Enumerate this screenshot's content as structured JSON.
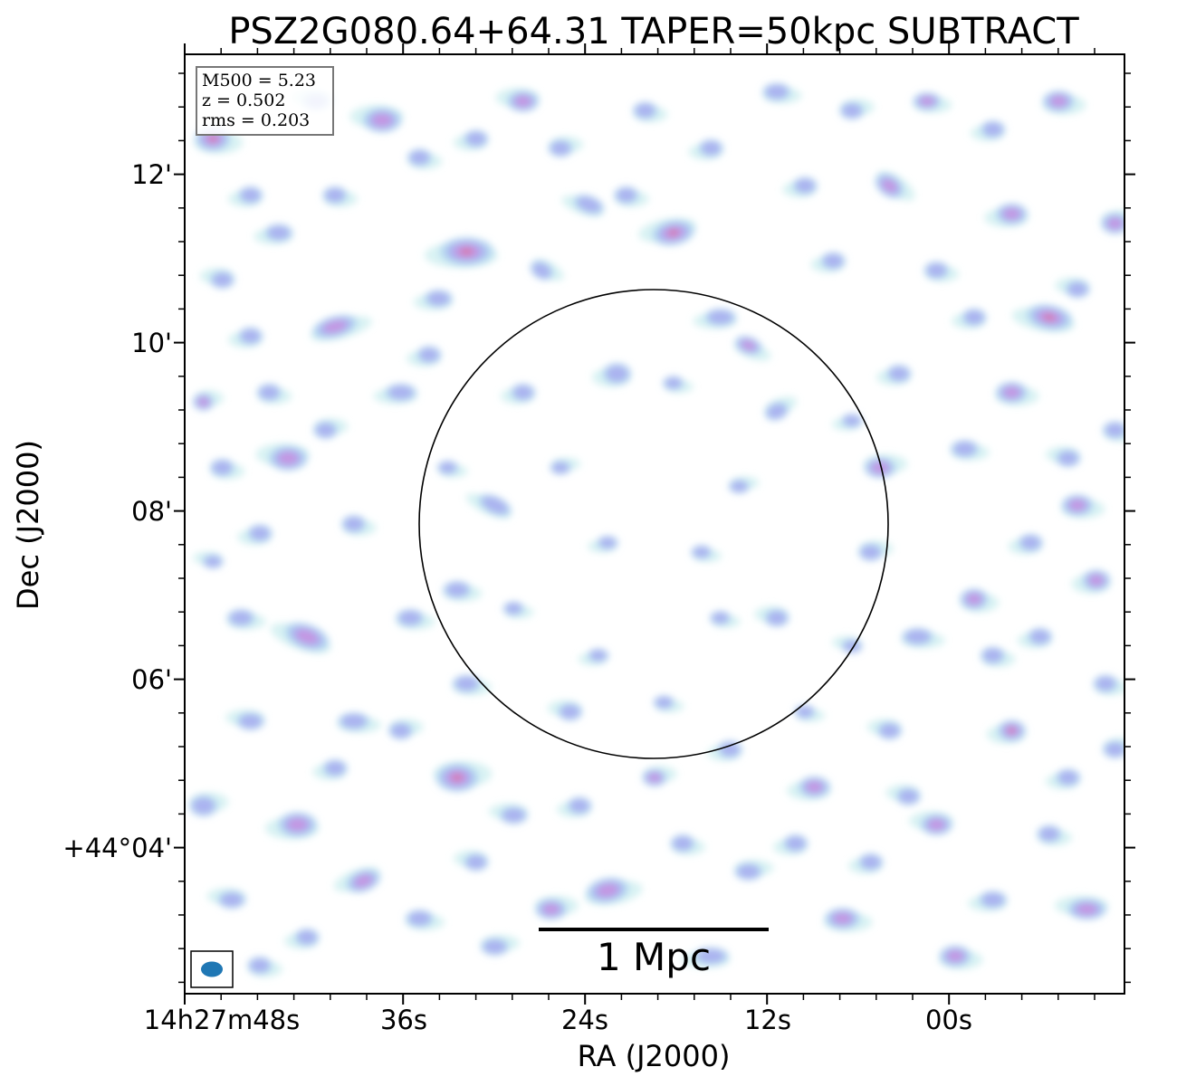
{
  "chart_data": {
    "type": "heatmap",
    "title": "PSZ2G080.64+64.31 TAPER=50kpc SUBTRACT",
    "xlabel": "RA (J2000)",
    "ylabel": "Dec (J2000)",
    "x_ticks": [
      "14h27m48s",
      "36s",
      "24s",
      "12s",
      "00s"
    ],
    "y_ticks": [
      "12'",
      "10'",
      "08'",
      "06'",
      "+44°04'"
    ],
    "info": {
      "m500": "M500 = 5.23",
      "z": "z = 0.502",
      "rms": "rms = 0.203"
    },
    "scale_bar": {
      "label": "1 Mpc",
      "length_mpc": 1
    },
    "beam": {
      "color": "#1f77b4"
    },
    "circle": {
      "color": "#000000"
    },
    "colormap": [
      "#c9ecee",
      "#b3d6f0",
      "#a8aef0",
      "#c792e0",
      "#d96f9a"
    ],
    "blobs": [
      [
        0.52,
        0.19,
        24,
        14,
        3,
        -10
      ],
      [
        0.6,
        0.31,
        16,
        10,
        2,
        20
      ],
      [
        0.3,
        0.21,
        30,
        16,
        3,
        0
      ],
      [
        0.75,
        0.14,
        18,
        12,
        2,
        35
      ],
      [
        0.07,
        0.3,
        14,
        10,
        1,
        0
      ],
      [
        0.16,
        0.29,
        26,
        12,
        2,
        -15
      ],
      [
        0.11,
        0.43,
        22,
        14,
        2,
        0
      ],
      [
        0.84,
        0.58,
        16,
        12,
        2,
        0
      ],
      [
        0.33,
        0.48,
        20,
        10,
        1,
        25
      ],
      [
        0.63,
        0.38,
        14,
        10,
        1,
        -20
      ],
      [
        0.92,
        0.28,
        26,
        14,
        3,
        10
      ],
      [
        0.06,
        0.6,
        16,
        10,
        1,
        0
      ],
      [
        0.8,
        0.82,
        18,
        12,
        2,
        0
      ],
      [
        0.45,
        0.89,
        24,
        14,
        2,
        -10
      ],
      [
        0.88,
        0.72,
        16,
        12,
        3,
        0
      ],
      [
        0.29,
        0.77,
        24,
        16,
        3,
        0
      ],
      [
        0.13,
        0.62,
        26,
        14,
        2,
        20
      ],
      [
        0.7,
        0.92,
        20,
        12,
        2,
        0
      ],
      [
        0.21,
        0.07,
        22,
        14,
        2,
        0
      ],
      [
        0.95,
        0.48,
        18,
        12,
        2,
        0
      ],
      [
        0.57,
        0.28,
        18,
        10,
        1,
        0
      ],
      [
        0.38,
        0.23,
        14,
        10,
        1,
        30
      ],
      [
        0.71,
        0.39,
        12,
        8,
        1,
        0
      ],
      [
        0.52,
        0.35,
        12,
        8,
        1,
        0
      ],
      [
        0.36,
        0.05,
        18,
        12,
        2,
        0
      ],
      [
        0.03,
        0.09,
        20,
        14,
        3,
        0
      ],
      [
        0.46,
        0.34,
        16,
        12,
        1,
        0
      ],
      [
        0.74,
        0.44,
        18,
        12,
        2,
        0
      ],
      [
        0.1,
        0.19,
        16,
        10,
        1,
        0
      ],
      [
        0.28,
        0.44,
        12,
        8,
        1,
        0
      ],
      [
        0.19,
        0.88,
        20,
        12,
        2,
        -20
      ],
      [
        0.24,
        0.6,
        16,
        10,
        1,
        0
      ],
      [
        0.84,
        0.28,
        14,
        10,
        1,
        0
      ],
      [
        0.02,
        0.8,
        16,
        12,
        1,
        0
      ],
      [
        0.12,
        0.82,
        22,
        14,
        2,
        0
      ],
      [
        0.29,
        0.57,
        16,
        10,
        1,
        0
      ],
      [
        0.63,
        0.6,
        14,
        10,
        1,
        0
      ],
      [
        0.78,
        0.62,
        18,
        10,
        1,
        0
      ],
      [
        0.97,
        0.56,
        16,
        12,
        2,
        0
      ],
      [
        0.39,
        0.91,
        18,
        12,
        2,
        0
      ],
      [
        0.56,
        0.96,
        20,
        10,
        1,
        0
      ],
      [
        0.82,
        0.96,
        18,
        12,
        2,
        0
      ],
      [
        0.96,
        0.91,
        22,
        12,
        2,
        0
      ],
      [
        0.04,
        0.44,
        14,
        10,
        1,
        0
      ],
      [
        0.43,
        0.16,
        18,
        10,
        1,
        20
      ],
      [
        0.5,
        0.77,
        14,
        10,
        2,
        0
      ],
      [
        0.67,
        0.78,
        18,
        12,
        2,
        0
      ],
      [
        0.88,
        0.36,
        18,
        12,
        2,
        0
      ],
      [
        0.41,
        0.7,
        14,
        10,
        1,
        0
      ],
      [
        0.09,
        0.36,
        14,
        10,
        1,
        0
      ],
      [
        0.23,
        0.36,
        18,
        10,
        1,
        0
      ],
      [
        0.59,
        0.46,
        12,
        8,
        1,
        0
      ],
      [
        0.66,
        0.14,
        14,
        10,
        1,
        0
      ],
      [
        0.79,
        0.05,
        16,
        10,
        2,
        0
      ],
      [
        0.14,
        0.05,
        16,
        10,
        1,
        0
      ],
      [
        0.49,
        0.06,
        14,
        10,
        1,
        0
      ],
      [
        0.88,
        0.17,
        18,
        12,
        2,
        0
      ],
      [
        0.99,
        0.18,
        16,
        12,
        2,
        0
      ],
      [
        0.91,
        0.62,
        14,
        10,
        1,
        0
      ],
      [
        0.18,
        0.71,
        18,
        10,
        1,
        0
      ],
      [
        0.07,
        0.71,
        16,
        10,
        1,
        0
      ],
      [
        0.3,
        0.67,
        16,
        10,
        1,
        0
      ],
      [
        0.58,
        0.74,
        14,
        10,
        1,
        0
      ],
      [
        0.73,
        0.53,
        14,
        10,
        1,
        0
      ],
      [
        0.69,
        0.22,
        14,
        10,
        1,
        0
      ],
      [
        0.93,
        0.05,
        18,
        12,
        2,
        0
      ],
      [
        0.35,
        0.81,
        16,
        10,
        1,
        0
      ],
      [
        0.47,
        0.15,
        14,
        10,
        1,
        0
      ],
      [
        0.27,
        0.26,
        16,
        10,
        1,
        0
      ],
      [
        0.02,
        0.37,
        12,
        10,
        2,
        0
      ],
      [
        0.36,
        0.36,
        14,
        10,
        1,
        0
      ],
      [
        0.51,
        0.69,
        12,
        8,
        1,
        0
      ],
      [
        0.75,
        0.72,
        14,
        10,
        1,
        0
      ],
      [
        0.55,
        0.53,
        12,
        8,
        1,
        0
      ],
      [
        0.65,
        0.84,
        14,
        10,
        1,
        0
      ],
      [
        0.6,
        0.87,
        16,
        10,
        1,
        0
      ],
      [
        0.86,
        0.9,
        16,
        10,
        1,
        0
      ],
      [
        0.92,
        0.83,
        14,
        10,
        1,
        0
      ],
      [
        0.05,
        0.9,
        16,
        10,
        1,
        0
      ],
      [
        0.25,
        0.92,
        16,
        10,
        1,
        0
      ],
      [
        0.13,
        0.94,
        14,
        10,
        1,
        0
      ],
      [
        0.33,
        0.95,
        16,
        10,
        1,
        0
      ],
      [
        0.42,
        0.8,
        14,
        10,
        1,
        0
      ],
      [
        0.98,
        0.67,
        14,
        10,
        1,
        0
      ],
      [
        0.94,
        0.43,
        14,
        10,
        1,
        0
      ],
      [
        0.83,
        0.42,
        16,
        10,
        1,
        0
      ],
      [
        0.76,
        0.34,
        14,
        10,
        1,
        0
      ],
      [
        0.4,
        0.44,
        12,
        8,
        1,
        0
      ],
      [
        0.45,
        0.52,
        12,
        8,
        1,
        0
      ],
      [
        0.57,
        0.6,
        12,
        8,
        1,
        0
      ],
      [
        0.71,
        0.63,
        12,
        8,
        1,
        0
      ],
      [
        0.35,
        0.59,
        12,
        8,
        1,
        0
      ],
      [
        0.26,
        0.32,
        14,
        10,
        1,
        0
      ],
      [
        0.15,
        0.4,
        14,
        10,
        1,
        0
      ],
      [
        0.08,
        0.51,
        14,
        10,
        1,
        0
      ],
      [
        0.18,
        0.5,
        14,
        10,
        1,
        0
      ],
      [
        0.03,
        0.54,
        12,
        8,
        1,
        0
      ],
      [
        0.63,
        0.04,
        16,
        10,
        1,
        0
      ],
      [
        0.56,
        0.1,
        14,
        10,
        1,
        0
      ],
      [
        0.71,
        0.06,
        14,
        10,
        1,
        0
      ],
      [
        0.86,
        0.08,
        14,
        10,
        1,
        0
      ],
      [
        0.8,
        0.23,
        14,
        10,
        1,
        0
      ],
      [
        0.95,
        0.25,
        14,
        10,
        1,
        0
      ],
      [
        0.25,
        0.11,
        14,
        10,
        1,
        0
      ],
      [
        0.31,
        0.09,
        14,
        10,
        1,
        0
      ],
      [
        0.4,
        0.1,
        14,
        10,
        1,
        0
      ],
      [
        0.07,
        0.15,
        14,
        10,
        1,
        0
      ],
      [
        0.16,
        0.15,
        14,
        10,
        1,
        0
      ],
      [
        0.04,
        0.24,
        14,
        10,
        1,
        0
      ],
      [
        0.99,
        0.4,
        14,
        10,
        1,
        0
      ],
      [
        0.9,
        0.52,
        14,
        10,
        1,
        0
      ],
      [
        0.99,
        0.74,
        14,
        10,
        1,
        0
      ],
      [
        0.73,
        0.86,
        14,
        10,
        1,
        0
      ],
      [
        0.53,
        0.84,
        14,
        10,
        1,
        0
      ],
      [
        0.31,
        0.86,
        14,
        10,
        1,
        0
      ],
      [
        0.08,
        0.97,
        14,
        10,
        1,
        0
      ],
      [
        0.16,
        0.76,
        14,
        10,
        1,
        0
      ],
      [
        0.23,
        0.72,
        14,
        10,
        1,
        0
      ],
      [
        0.44,
        0.64,
        12,
        8,
        1,
        0
      ],
      [
        0.66,
        0.7,
        12,
        8,
        1,
        0
      ],
      [
        0.77,
        0.79,
        14,
        10,
        1,
        0
      ],
      [
        0.86,
        0.64,
        14,
        10,
        1,
        0
      ],
      [
        0.94,
        0.77,
        14,
        10,
        1,
        0
      ]
    ]
  }
}
